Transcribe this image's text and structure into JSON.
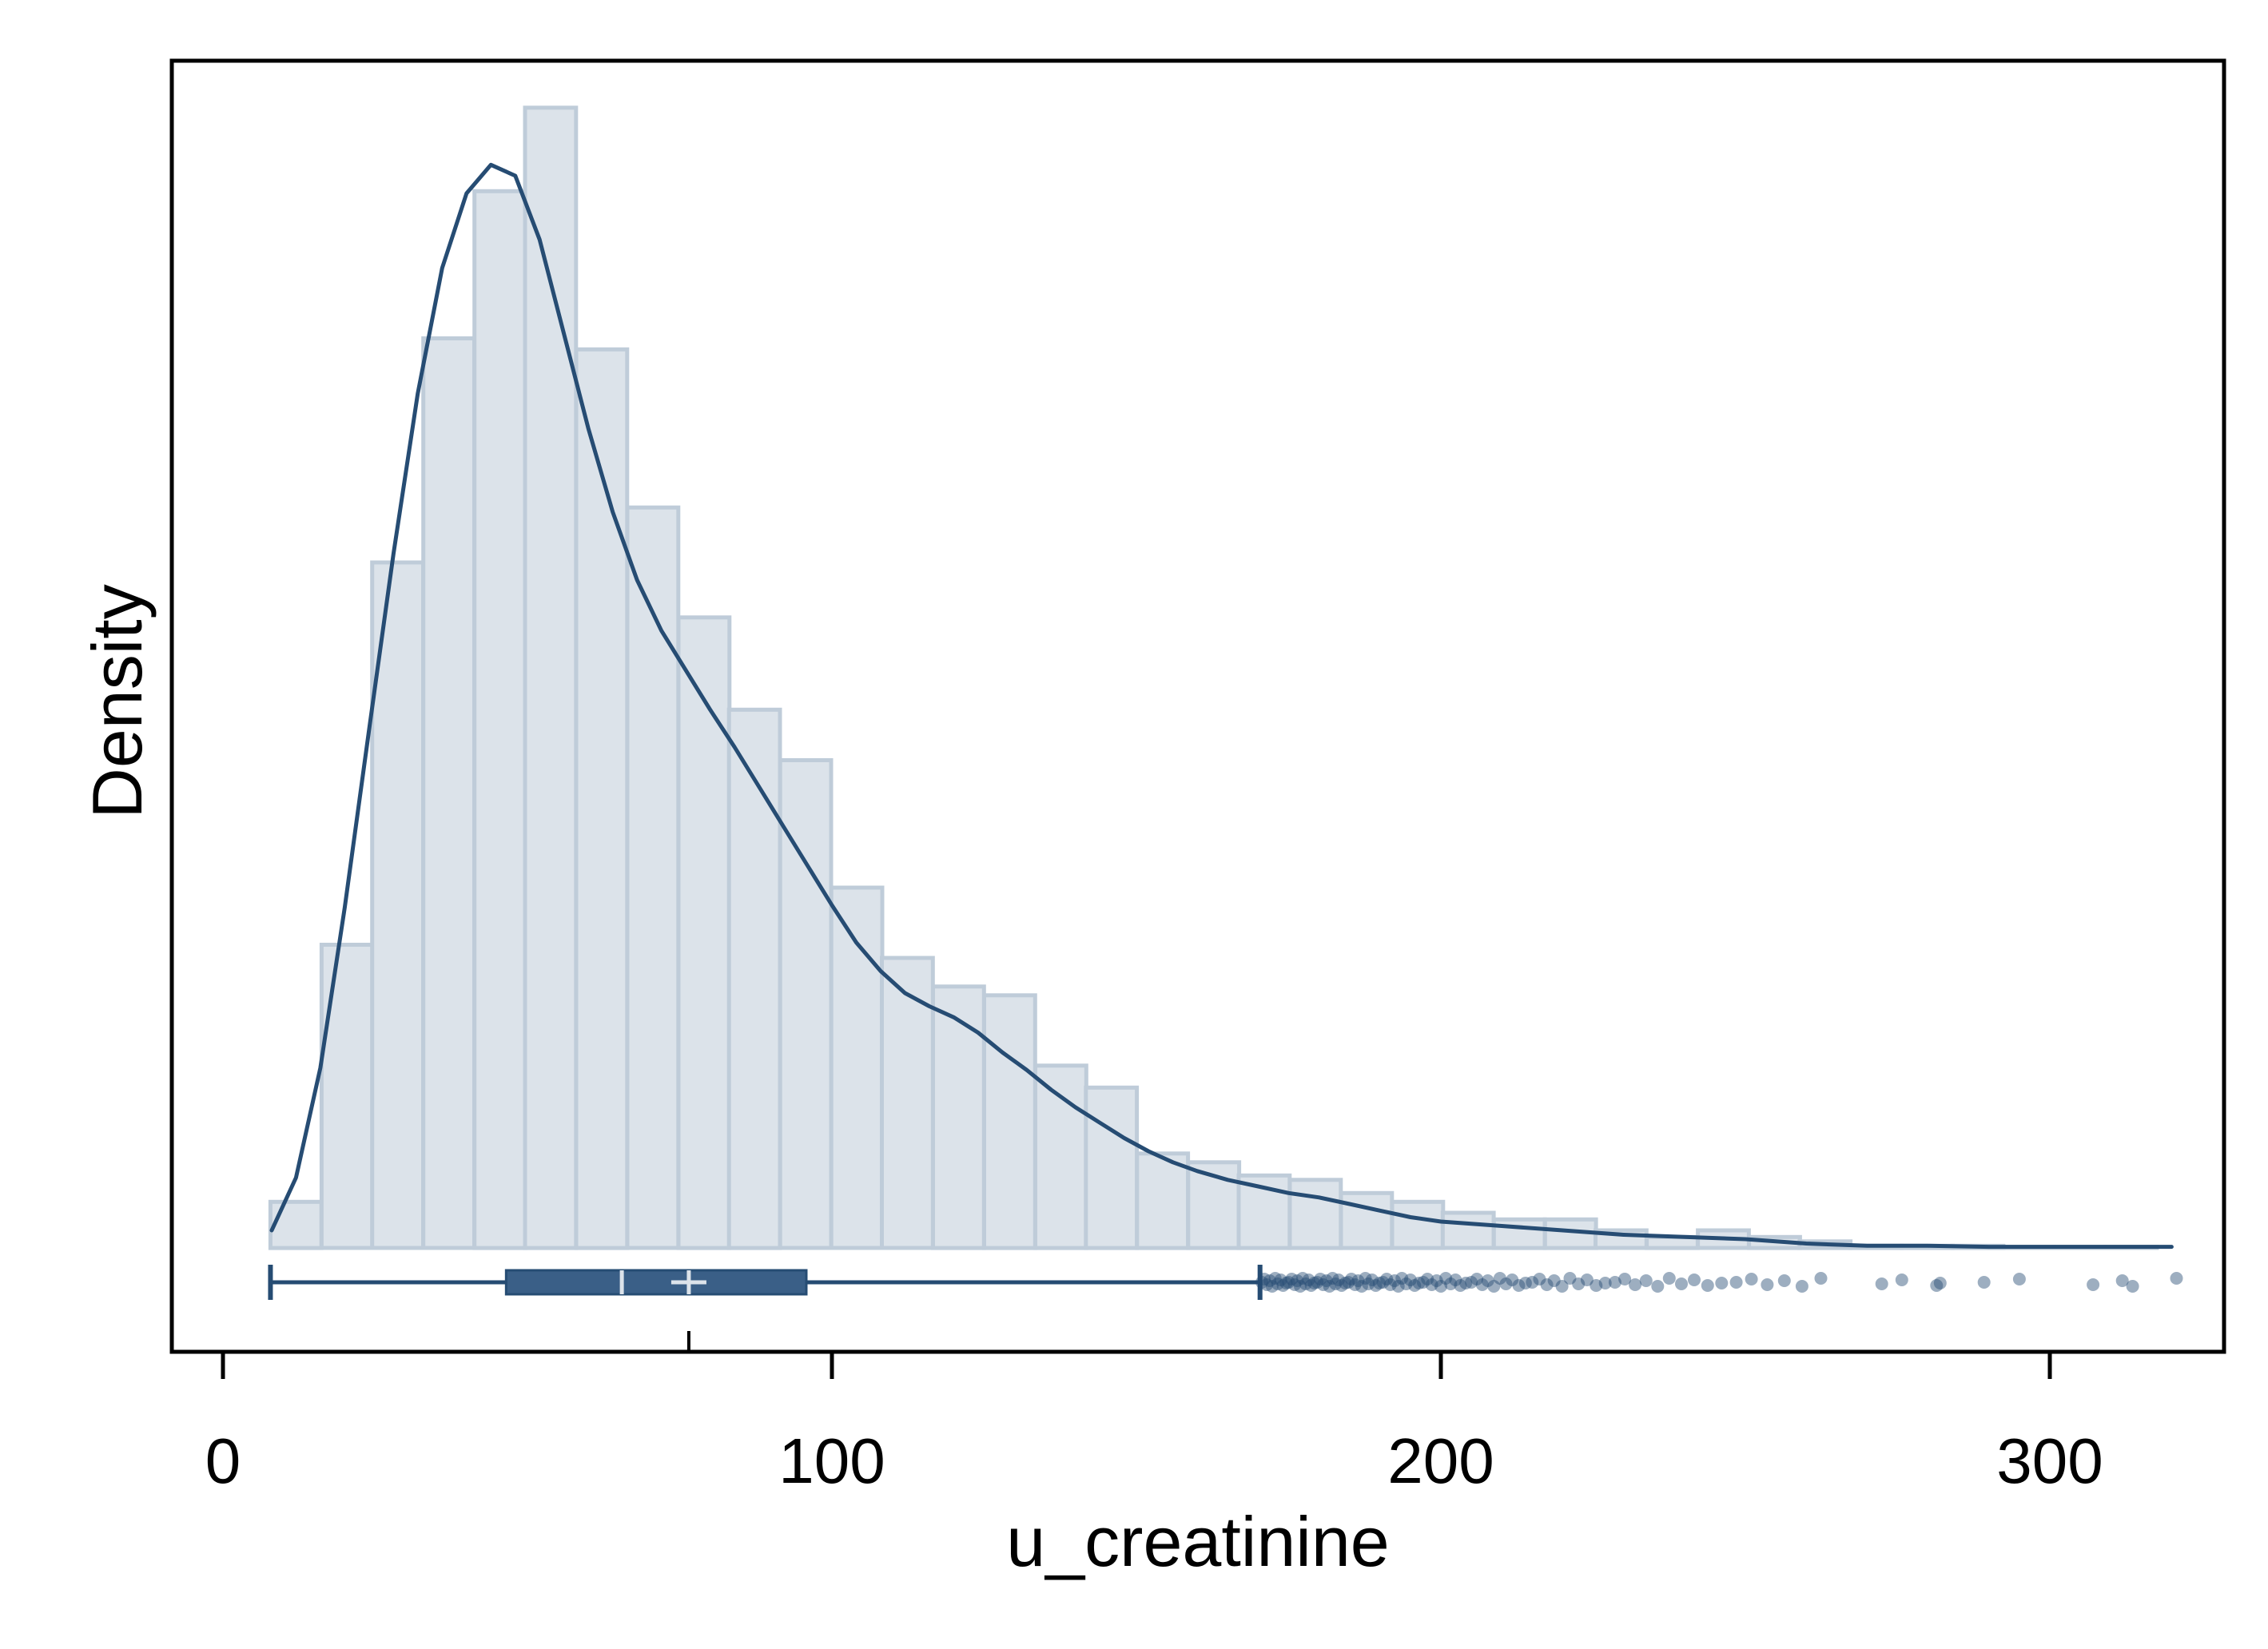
{
  "chart_data": {
    "type": "histogram",
    "title": "",
    "xlabel": "u_creatinine",
    "ylabel": "Density",
    "xlim": [
      -8,
      329
    ],
    "x_ticks": [
      {
        "value": 0,
        "label": "0"
      },
      {
        "value": 100,
        "label": "100"
      },
      {
        "value": 200,
        "label": "200"
      },
      {
        "value": 300,
        "label": "300"
      }
    ],
    "y_ticks_shown": false,
    "grid": false,
    "legend": "none",
    "colors": {
      "bar_fill": "#dce3ea",
      "bar_stroke": "#bfccd9",
      "line": "#264c73",
      "box_fill": "#3a5f87",
      "axis": "#000000"
    },
    "histogram": {
      "bin_width": 8.37,
      "bins": [
        {
          "x0": 7.8,
          "height": 2.1
        },
        {
          "x0": 16.2,
          "height": 13.8
        },
        {
          "x0": 24.5,
          "height": 31.2
        },
        {
          "x0": 32.9,
          "height": 41.4
        },
        {
          "x0": 41.3,
          "height": 48.1
        },
        {
          "x0": 49.6,
          "height": 51.9
        },
        {
          "x0": 58.0,
          "height": 40.9
        },
        {
          "x0": 66.4,
          "height": 33.7
        },
        {
          "x0": 74.8,
          "height": 28.7
        },
        {
          "x0": 83.1,
          "height": 24.5
        },
        {
          "x0": 91.5,
          "height": 22.2
        },
        {
          "x0": 99.9,
          "height": 16.4
        },
        {
          "x0": 108.2,
          "height": 13.2
        },
        {
          "x0": 116.6,
          "height": 11.9
        },
        {
          "x0": 125.0,
          "height": 11.5
        },
        {
          "x0": 133.4,
          "height": 8.3
        },
        {
          "x0": 141.7,
          "height": 7.3
        },
        {
          "x0": 150.1,
          "height": 4.3
        },
        {
          "x0": 158.5,
          "height": 3.9
        },
        {
          "x0": 166.8,
          "height": 3.3
        },
        {
          "x0": 175.2,
          "height": 3.1
        },
        {
          "x0": 183.6,
          "height": 2.5
        },
        {
          "x0": 192.0,
          "height": 2.1
        },
        {
          "x0": 200.3,
          "height": 1.6
        },
        {
          "x0": 208.7,
          "height": 1.3
        },
        {
          "x0": 217.1,
          "height": 1.3
        },
        {
          "x0": 225.4,
          "height": 0.8
        },
        {
          "x0": 233.8,
          "height": 0.5
        },
        {
          "x0": 242.2,
          "height": 0.8
        },
        {
          "x0": 250.6,
          "height": 0.5
        },
        {
          "x0": 258.9,
          "height": 0.3
        },
        {
          "x0": 267.3,
          "height": 0.1
        },
        {
          "x0": 275.7,
          "height": 0.1
        },
        {
          "x0": 284.0,
          "height": 0.1
        },
        {
          "x0": 292.4,
          "height": 0.05
        },
        {
          "x0": 300.8,
          "height": 0.05
        },
        {
          "x0": 309.2,
          "height": 0.05
        }
      ]
    },
    "density_curve": {
      "x": [
        8,
        12,
        16,
        20,
        24,
        28,
        32,
        36,
        40,
        44,
        48,
        52,
        56,
        60,
        64,
        68,
        72,
        76,
        80,
        84,
        88,
        92,
        96,
        100,
        104,
        108,
        112,
        116,
        120,
        124,
        128,
        132,
        136,
        140,
        144,
        148,
        152,
        156,
        160,
        165,
        170,
        175,
        180,
        185,
        190,
        195,
        200,
        210,
        220,
        230,
        240,
        250,
        260,
        270,
        280,
        290,
        300,
        310,
        320
      ],
      "y": [
        0.8,
        3.2,
        8.2,
        15.5,
        23.6,
        31.6,
        38.9,
        44.6,
        48.0,
        49.3,
        48.8,
        45.9,
        41.6,
        37.3,
        33.5,
        30.4,
        28.1,
        26.3,
        24.5,
        22.8,
        21.0,
        19.2,
        17.4,
        15.6,
        13.9,
        12.6,
        11.6,
        11.0,
        10.5,
        9.8,
        8.9,
        8.1,
        7.2,
        6.4,
        5.7,
        5.0,
        4.4,
        3.9,
        3.5,
        3.1,
        2.8,
        2.5,
        2.3,
        2.0,
        1.7,
        1.4,
        1.2,
        1.0,
        0.8,
        0.6,
        0.5,
        0.4,
        0.2,
        0.1,
        0.1,
        0.05,
        0.05,
        0.05,
        0.05
      ]
    },
    "boxplot": {
      "whisker_low": 7.8,
      "q1": 46.5,
      "median": 65.5,
      "mean": 76.5,
      "q3": 95.8,
      "whisker_high": 170.3,
      "outliers": [
        170.6,
        171.0,
        171.4,
        171.9,
        172.3,
        172.8,
        173.2,
        173.7,
        174.1,
        174.6,
        175.0,
        175.5,
        176.0,
        176.4,
        176.9,
        177.3,
        177.8,
        178.3,
        178.7,
        179.2,
        179.7,
        180.2,
        180.7,
        181.2,
        181.7,
        182.2,
        182.7,
        183.2,
        183.7,
        184.3,
        184.8,
        185.3,
        185.9,
        186.4,
        187.0,
        187.6,
        188.1,
        188.7,
        189.3,
        189.9,
        190.5,
        191.1,
        191.7,
        192.4,
        193.0,
        193.6,
        194.3,
        195.0,
        195.7,
        196.4,
        197.1,
        197.8,
        198.5,
        199.3,
        200.0,
        200.8,
        201.6,
        202.4,
        203.2,
        204.1,
        205.0,
        205.9,
        206.8,
        207.7,
        208.7,
        209.7,
        210.7,
        211.7,
        212.8,
        213.9,
        215.0,
        216.2,
        217.4,
        218.6,
        219.9,
        221.2,
        222.6,
        224.0,
        225.5,
        227.0,
        228.6,
        230.2,
        231.9,
        233.7,
        235.6,
        237.5,
        239.5,
        241.6,
        243.8,
        246.1,
        248.5,
        251.0,
        253.6,
        256.4,
        259.3,
        262.4,
        272.4,
        275.7,
        281.4,
        282.0,
        289.2,
        295.0,
        307.1,
        311.9,
        313.6,
        320.8
      ]
    }
  }
}
